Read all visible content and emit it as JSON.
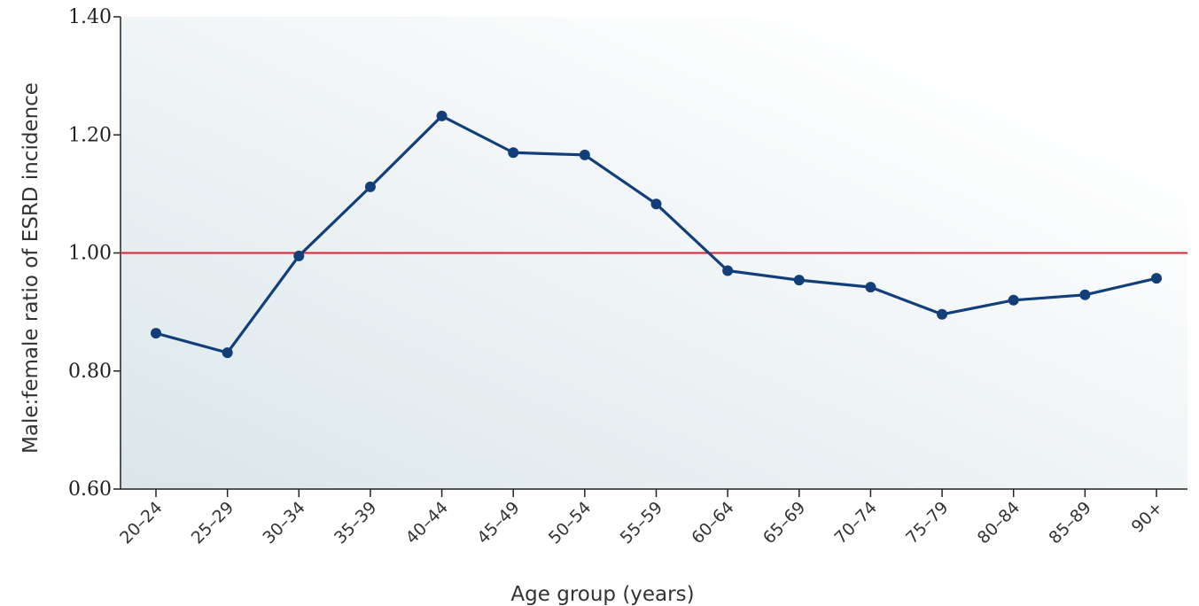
{
  "chart_data": {
    "type": "line",
    "title": "",
    "xlabel": "Age group (years)",
    "ylabel": "Male:female ratio of ESRD incidence",
    "categories": [
      "20–24",
      "25–29",
      "30–34",
      "35–39",
      "40–44",
      "45–49",
      "50–54",
      "55–59",
      "60–64",
      "65–69",
      "70–74",
      "75–79",
      "80–84",
      "85–89",
      "90+"
    ],
    "series": [
      {
        "values": [
          0.864,
          0.831,
          0.995,
          1.112,
          1.232,
          1.17,
          1.166,
          1.083,
          0.97,
          0.954,
          0.942,
          0.896,
          0.92,
          0.929,
          0.957
        ]
      }
    ],
    "ylim": [
      0.6,
      1.4
    ],
    "yticks": [
      "0.60",
      "0.80",
      "1.00",
      "1.20",
      "1.40"
    ],
    "reference_line": {
      "y": 1.0
    },
    "grid": false,
    "legend": "none",
    "colors": {
      "series": "#123f7a",
      "reference": "#d9232e",
      "background_left": "#dbe6ea",
      "background_right": "#ffffff",
      "axis": "#222222"
    }
  }
}
